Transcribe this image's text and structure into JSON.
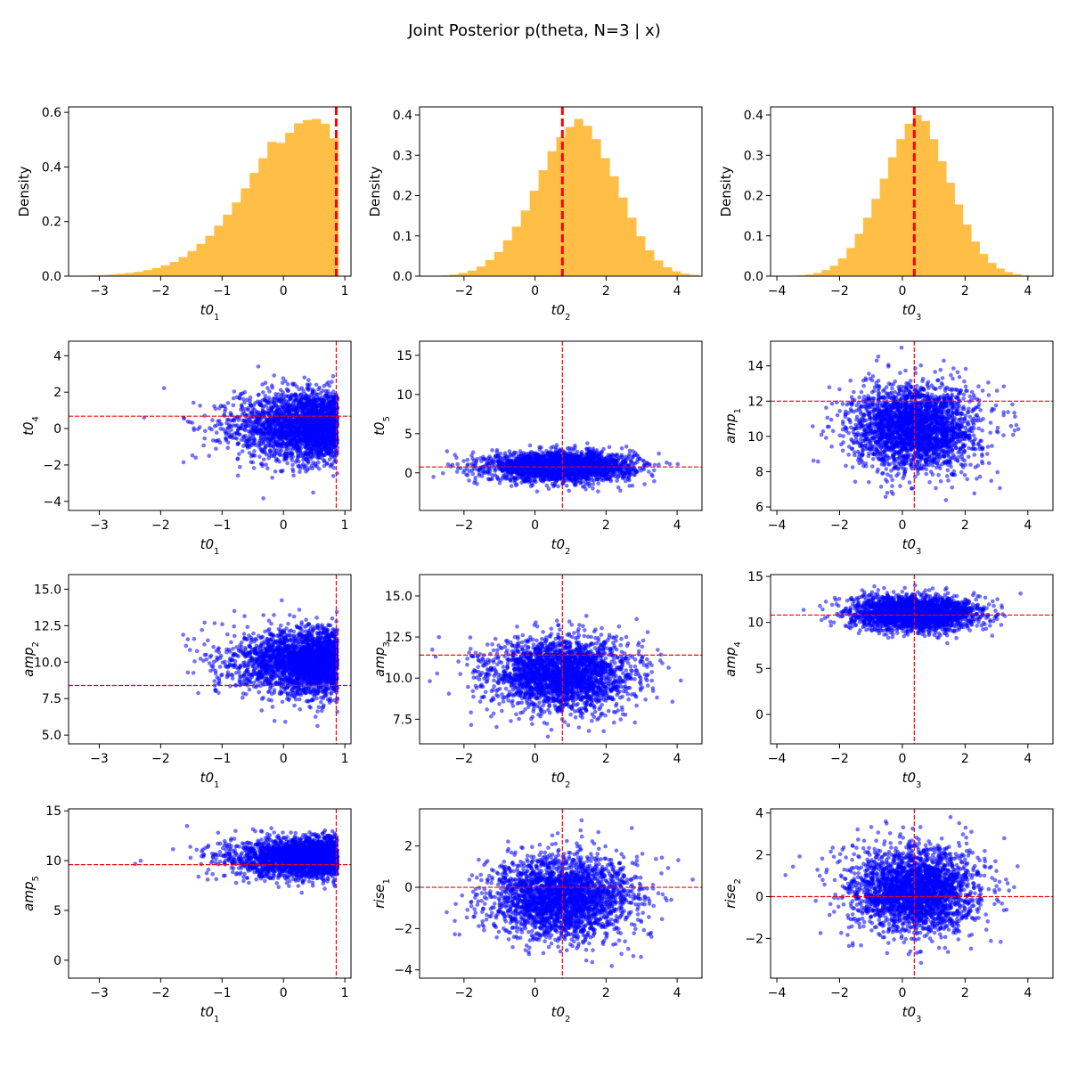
{
  "figure": {
    "title": "Joint Posterior p(theta, N=3 | x)",
    "colors": {
      "hist": "#FFB833",
      "scatter": "#0000FF",
      "truth": "#FF0000"
    }
  },
  "chart_data": [
    {
      "type": "bar",
      "subtype": "histogram",
      "xlabel": {
        "base": "t0",
        "sub": "1"
      },
      "ylabel": "Density",
      "xlim": [
        -3.5,
        1.1
      ],
      "ylim": [
        0,
        0.62
      ],
      "xticks": [
        -3,
        -2,
        -1,
        0,
        1
      ],
      "yticks": [
        0.0,
        0.2,
        0.4,
        0.6
      ],
      "bins": {
        "start": -3.3,
        "width": 0.1447
      },
      "values": [
        0.002,
        0.003,
        0.004,
        0.006,
        0.009,
        0.012,
        0.016,
        0.022,
        0.03,
        0.04,
        0.052,
        0.07,
        0.092,
        0.118,
        0.148,
        0.185,
        0.225,
        0.27,
        0.322,
        0.378,
        0.432,
        0.492,
        0.488,
        0.525,
        0.56,
        0.572,
        0.576,
        0.558,
        0.505
      ],
      "truth": 0.86,
      "truth_axis": "x",
      "color": "#FFB833"
    },
    {
      "type": "bar",
      "subtype": "histogram",
      "xlabel": {
        "base": "t0",
        "sub": "2"
      },
      "ylabel": "Density",
      "xlim": [
        -3.25,
        4.7
      ],
      "ylim": [
        0,
        0.42
      ],
      "xticks": [
        -2,
        0,
        2,
        4
      ],
      "yticks": [
        0.0,
        0.1,
        0.2,
        0.3,
        0.4
      ],
      "bins": {
        "start": -2.9,
        "width": 0.25
      },
      "values": [
        0.001,
        0.002,
        0.004,
        0.008,
        0.014,
        0.024,
        0.04,
        0.06,
        0.089,
        0.123,
        0.163,
        0.212,
        0.263,
        0.31,
        0.345,
        0.37,
        0.39,
        0.373,
        0.34,
        0.293,
        0.248,
        0.195,
        0.145,
        0.099,
        0.064,
        0.039,
        0.022,
        0.012,
        0.006,
        0.003
      ],
      "truth": 0.77,
      "truth_axis": "x",
      "color": "#FFB833"
    },
    {
      "type": "bar",
      "subtype": "histogram",
      "xlabel": {
        "base": "t0",
        "sub": "3"
      },
      "ylabel": "Density",
      "xlim": [
        -4.2,
        4.8
      ],
      "ylim": [
        0,
        0.42
      ],
      "xticks": [
        -4,
        -2,
        0,
        2,
        4
      ],
      "yticks": [
        0.0,
        0.1,
        0.2,
        0.3,
        0.4
      ],
      "bins": {
        "start": -3.9,
        "width": 0.265
      },
      "values": [
        0.001,
        0.001,
        0.002,
        0.004,
        0.008,
        0.015,
        0.026,
        0.044,
        0.07,
        0.105,
        0.145,
        0.192,
        0.242,
        0.295,
        0.34,
        0.378,
        0.4,
        0.385,
        0.34,
        0.285,
        0.232,
        0.178,
        0.128,
        0.086,
        0.055,
        0.033,
        0.019,
        0.01,
        0.005,
        0.002,
        0.001,
        0.001
      ],
      "truth": 0.38,
      "truth_axis": "x",
      "color": "#FFB833"
    },
    {
      "type": "scatter",
      "xlabel": {
        "base": "t0",
        "sub": "1"
      },
      "ylabel": {
        "base": "t0",
        "sub": "4"
      },
      "xlim": [
        -3.5,
        1.1
      ],
      "ylim": [
        -4.5,
        4.8
      ],
      "xticks": [
        -3,
        -2,
        -1,
        0,
        1
      ],
      "yticks": [
        -4,
        -2,
        0,
        2,
        4
      ],
      "x_dist": {
        "kind": "skew",
        "max": 0.88,
        "scale": 0.78,
        "min": -3.35
      },
      "y_dist": {
        "mean": 0.15,
        "sd": 0.95
      },
      "truth_x": 0.86,
      "truth_y": 0.68,
      "color": "#0000FF"
    },
    {
      "type": "scatter",
      "xlabel": {
        "base": "t0",
        "sub": "2"
      },
      "ylabel": {
        "base": "t0",
        "sub": "5"
      },
      "xlim": [
        -3.25,
        4.7
      ],
      "ylim": [
        -4.8,
        16.8
      ],
      "xticks": [
        -2,
        0,
        2,
        4
      ],
      "yticks": [
        0,
        5,
        10,
        15
      ],
      "x_dist": {
        "mean": 0.75,
        "sd": 1.0
      },
      "y_dist": {
        "mean": 0.8,
        "sd": 0.9
      },
      "truth_x": 0.77,
      "truth_y": 0.75,
      "color": "#0000FF"
    },
    {
      "type": "scatter",
      "xlabel": {
        "base": "t0",
        "sub": "3"
      },
      "ylabel": {
        "base": "amp",
        "sub": "1"
      },
      "xlim": [
        -4.2,
        4.8
      ],
      "ylim": [
        5.8,
        15.4
      ],
      "xticks": [
        -4,
        -2,
        0,
        2,
        4
      ],
      "yticks": [
        6,
        8,
        10,
        12,
        14
      ],
      "x_dist": {
        "mean": 0.4,
        "sd": 1.0
      },
      "y_dist": {
        "mean": 10.5,
        "sd": 1.2
      },
      "truth_x": 0.38,
      "truth_y": 12.0,
      "color": "#0000FF"
    },
    {
      "type": "scatter",
      "xlabel": {
        "base": "t0",
        "sub": "1"
      },
      "ylabel": {
        "base": "amp",
        "sub": "2"
      },
      "xlim": [
        -3.5,
        1.1
      ],
      "ylim": [
        4.4,
        16.0
      ],
      "xticks": [
        -3,
        -2,
        -1,
        0,
        1
      ],
      "yticks": [
        5.0,
        7.5,
        10.0,
        12.5,
        15.0
      ],
      "yticklabels": [
        "5.0",
        "7.5",
        "10.0",
        "12.5",
        "15.0"
      ],
      "x_dist": {
        "kind": "skew",
        "max": 0.88,
        "scale": 0.78,
        "min": -3.35
      },
      "y_dist": {
        "mean": 10.0,
        "sd": 1.1
      },
      "truth_x": 0.86,
      "truth_y": 8.4,
      "color": "#0000FF"
    },
    {
      "type": "scatter",
      "xlabel": {
        "base": "t0",
        "sub": "2"
      },
      "ylabel": {
        "base": "amp",
        "sub": "3"
      },
      "xlim": [
        -3.25,
        4.7
      ],
      "ylim": [
        6.0,
        16.3
      ],
      "xticks": [
        -2,
        0,
        2,
        4
      ],
      "yticks": [
        7.5,
        10.0,
        12.5,
        15.0
      ],
      "yticklabels": [
        "7.5",
        "10.0",
        "12.5",
        "15.0"
      ],
      "x_dist": {
        "mean": 0.75,
        "sd": 1.0
      },
      "y_dist": {
        "mean": 10.2,
        "sd": 1.1
      },
      "truth_x": 0.77,
      "truth_y": 11.4,
      "color": "#0000FF"
    },
    {
      "type": "scatter",
      "xlabel": {
        "base": "t0",
        "sub": "3"
      },
      "ylabel": {
        "base": "amp",
        "sub": "4"
      },
      "xlim": [
        -4.2,
        4.8
      ],
      "ylim": [
        -3.2,
        15.2
      ],
      "xticks": [
        -4,
        -2,
        0,
        2,
        4
      ],
      "yticks": [
        0,
        5,
        10,
        15
      ],
      "x_dist": {
        "mean": 0.4,
        "sd": 1.0
      },
      "y_dist": {
        "mean": 11.0,
        "sd": 0.9
      },
      "truth_x": 0.38,
      "truth_y": 10.8,
      "color": "#0000FF"
    },
    {
      "type": "scatter",
      "xlabel": {
        "base": "t0",
        "sub": "1"
      },
      "ylabel": {
        "base": "amp",
        "sub": "5"
      },
      "xlim": [
        -3.5,
        1.1
      ],
      "ylim": [
        -1.8,
        15.2
      ],
      "xticks": [
        -3,
        -2,
        -1,
        0,
        1
      ],
      "yticks": [
        0,
        5,
        10,
        15
      ],
      "x_dist": {
        "kind": "skew",
        "max": 0.88,
        "scale": 0.78,
        "min": -3.35
      },
      "y_dist": {
        "mean": 10.3,
        "sd": 1.0
      },
      "truth_x": 0.86,
      "truth_y": 9.6,
      "color": "#0000FF"
    },
    {
      "type": "scatter",
      "xlabel": {
        "base": "t0",
        "sub": "2"
      },
      "ylabel": {
        "base": "rise",
        "sub": "1"
      },
      "xlim": [
        -3.25,
        4.7
      ],
      "ylim": [
        -4.4,
        3.8
      ],
      "xticks": [
        -2,
        0,
        2,
        4
      ],
      "yticks": [
        -4,
        -2,
        0,
        2
      ],
      "x_dist": {
        "mean": 0.75,
        "sd": 1.0
      },
      "y_dist": {
        "mean": -0.5,
        "sd": 1.0
      },
      "truth_x": 0.77,
      "truth_y": 0.0,
      "color": "#0000FF"
    },
    {
      "type": "scatter",
      "xlabel": {
        "base": "t0",
        "sub": "3"
      },
      "ylabel": {
        "base": "rise",
        "sub": "2"
      },
      "xlim": [
        -4.2,
        4.8
      ],
      "ylim": [
        -3.9,
        4.2
      ],
      "xticks": [
        -4,
        -2,
        0,
        2,
        4
      ],
      "yticks": [
        -2,
        0,
        2,
        4
      ],
      "x_dist": {
        "mean": 0.4,
        "sd": 1.0
      },
      "y_dist": {
        "mean": 0.3,
        "sd": 1.0
      },
      "truth_x": 0.38,
      "truth_y": 0.0,
      "color": "#0000FF"
    }
  ]
}
